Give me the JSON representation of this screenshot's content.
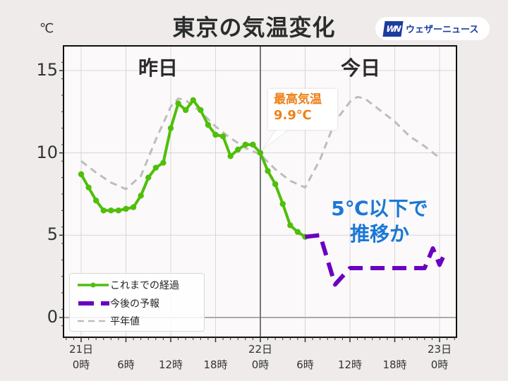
{
  "header": {
    "title": "東京の気温変化",
    "unit": "℃",
    "logo_mark": "WN",
    "logo_text": "ウェザーニュース"
  },
  "day_labels": {
    "yesterday": "昨日",
    "today": "今日"
  },
  "callout": {
    "title": "最高気温",
    "value": "9.9℃"
  },
  "annotation": {
    "line1": "5℃以下で",
    "line2": "推移か"
  },
  "legend": [
    {
      "label": "これまでの経過",
      "icon": "green-line-with-markers-icon"
    },
    {
      "label": "今後の予報",
      "icon": "purple-dashed-line-icon"
    },
    {
      "label": "平年値",
      "icon": "gray-dashed-line-icon"
    }
  ],
  "colors": {
    "observed": "#4fbf0a",
    "forecast": "#6a00c0",
    "normal": "#bdbdbd",
    "callout_text": "#ef8019",
    "annotation_text": "#1a78d6",
    "plot_bg": "#fbf9fa",
    "page_bg": "#eeebea"
  },
  "chart_data": {
    "type": "line",
    "title": "東京の気温変化",
    "xlabel": "",
    "ylabel": "℃",
    "ylim": [
      -0.8,
      16.1
    ],
    "xlim": [
      -2.3,
      50.3
    ],
    "yticks": [
      0,
      5,
      10,
      15
    ],
    "xticks": [
      {
        "hour": 0,
        "label": "21日\n0時"
      },
      {
        "hour": 6,
        "label": "6時"
      },
      {
        "hour": 12,
        "label": "12時"
      },
      {
        "hour": 18,
        "label": "18時"
      },
      {
        "hour": 24,
        "label": "22日\n0時"
      },
      {
        "hour": 30,
        "label": "6時"
      },
      {
        "hour": 36,
        "label": "12時"
      },
      {
        "hour": 42,
        "label": "18時"
      },
      {
        "hour": 48,
        "label": "23日\n0時"
      }
    ],
    "grid": true,
    "divider_hour": 24,
    "legend_position": "lower left",
    "series": [
      {
        "name": "これまでの経過",
        "style": "solid-markers",
        "x": [
          0,
          1,
          2,
          3,
          4,
          5,
          6,
          7,
          8,
          9,
          10,
          11,
          12,
          13,
          14,
          15,
          16,
          17,
          18,
          19,
          20,
          21,
          22,
          23,
          24,
          25,
          26,
          27,
          28,
          29,
          30
        ],
        "values": [
          8.7,
          7.9,
          7.1,
          6.5,
          6.5,
          6.5,
          6.6,
          6.7,
          7.4,
          8.5,
          9.1,
          9.4,
          11.5,
          13.0,
          12.6,
          13.2,
          12.6,
          11.7,
          11.1,
          11.0,
          9.8,
          10.2,
          10.5,
          10.5,
          10.0,
          8.9,
          8.1,
          6.9,
          5.6,
          5.2,
          4.9
        ]
      },
      {
        "name": "今後の予報",
        "style": "dashed-thick",
        "x": [
          30,
          32,
          34,
          36,
          37.2,
          46,
          47.1,
          48,
          48.8
        ],
        "values": [
          4.9,
          5.0,
          2.0,
          3.0,
          3.0,
          3.0,
          4.2,
          3.2,
          4.0
        ]
      },
      {
        "name": "平年値",
        "style": "dashed-thin",
        "x": [
          0,
          2,
          4,
          6,
          8,
          10,
          12,
          13,
          14,
          16,
          18,
          20,
          22,
          24,
          26,
          28,
          30,
          32,
          34,
          36,
          37,
          38,
          40,
          42,
          44,
          46,
          48
        ],
        "values": [
          9.5,
          8.8,
          8.2,
          7.8,
          8.6,
          10.8,
          12.8,
          13.3,
          13.2,
          12.5,
          11.6,
          10.9,
          10.3,
          9.9,
          9.0,
          8.3,
          7.9,
          9.6,
          11.9,
          13.1,
          13.4,
          13.3,
          12.6,
          11.9,
          11.0,
          10.4,
          9.7
        ]
      }
    ],
    "annotations": [
      {
        "text": "最高気温 9.9℃",
        "at_hour": 24
      },
      {
        "text": "5℃以下で推移か"
      }
    ]
  }
}
